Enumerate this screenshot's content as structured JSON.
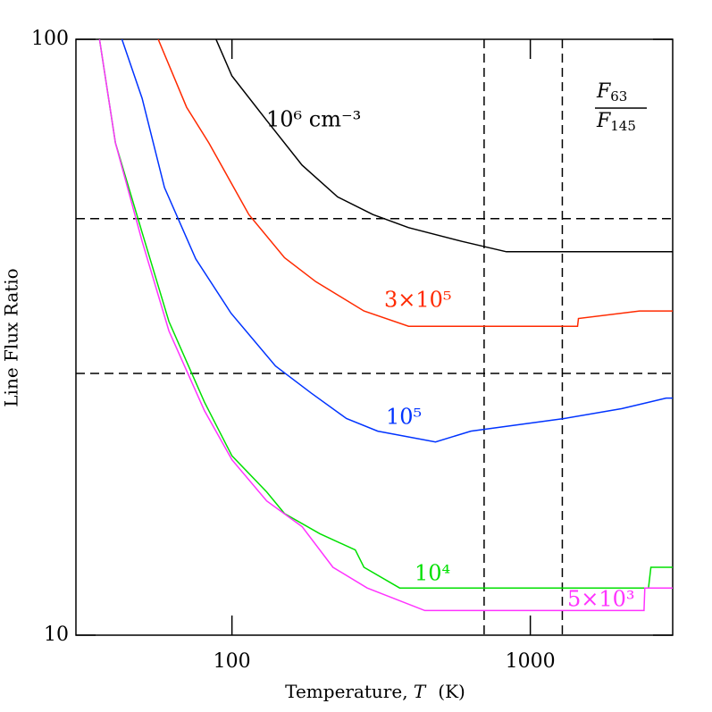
{
  "chart_data": {
    "type": "line",
    "x_label": "Temperature, ",
    "x_label_symbol": "T",
    "x_label_unit": "(K)",
    "y_label": "Line Flux Ratio",
    "xlog": true,
    "ylog": true,
    "xlim": [
      30,
      3000
    ],
    "ylim": [
      10,
      100
    ],
    "xticks": [
      100,
      1000
    ],
    "yticks": [
      10,
      100
    ],
    "reference_lines": {
      "x": [
        700,
        1280
      ],
      "y": [
        50,
        27.5
      ]
    },
    "ratio_label": {
      "numerator": [
        "F",
        "63"
      ],
      "denominator": [
        "F",
        "145"
      ]
    },
    "series": [
      {
        "name": "10⁶ cm⁻³",
        "color": "#000000",
        "x": [
          88.4,
          100,
          130.7,
          171.8,
          226,
          297,
          391,
          590,
          831,
          3000
        ],
        "values": [
          100,
          86.8,
          73.1,
          61.5,
          54.4,
          50.8,
          48.3,
          45.8,
          44.0,
          44.0
        ]
      },
      {
        "name": "3×10⁵",
        "color": "#ff2a00",
        "x": [
          56.6,
          70.5,
          83.7,
          114,
          150,
          191,
          277,
          391,
          1440,
          1450,
          2323,
          3000
        ],
        "values": [
          100,
          76.9,
          67.0,
          50.8,
          43.0,
          39.2,
          35.0,
          33.0,
          33.0,
          34.0,
          35.0,
          35.0
        ]
      },
      {
        "name": "10⁵",
        "color": "#0033ff",
        "x": [
          42.8,
          50,
          59.4,
          75.6,
          99.3,
          140,
          184,
          242,
          308,
          481,
          632,
          1297,
          2028,
          2853,
          3000
        ],
        "values": [
          100,
          79.6,
          56.4,
          42.8,
          34.7,
          28.3,
          25.5,
          23.1,
          22.0,
          21.1,
          22.0,
          23.1,
          24.0,
          25.0,
          25.0
        ]
      },
      {
        "name": "10⁴",
        "color": "#00e000",
        "x": [
          36.0,
          40.7,
          50,
          61.5,
          80.9,
          100,
          130.7,
          150,
          197,
          259,
          277,
          365,
          2488,
          2535,
          3000
        ],
        "values": [
          100,
          67,
          47.4,
          33.6,
          24.6,
          20,
          17.4,
          16.0,
          14.8,
          13.9,
          13.0,
          12.0,
          12.0,
          13.0,
          13.0
        ]
      },
      {
        "name": "5×10³",
        "color": "#ff33ff",
        "x": [
          36.0,
          40.7,
          50,
          61.5,
          80.9,
          100,
          130.7,
          172,
          218,
          284,
          443,
          2404,
          2420,
          3000
        ],
        "values": [
          100,
          67,
          45.8,
          32.4,
          23.8,
          19.7,
          16.8,
          15.2,
          13.0,
          12.0,
          11.0,
          11.0,
          12.0,
          12.0
        ]
      }
    ]
  }
}
